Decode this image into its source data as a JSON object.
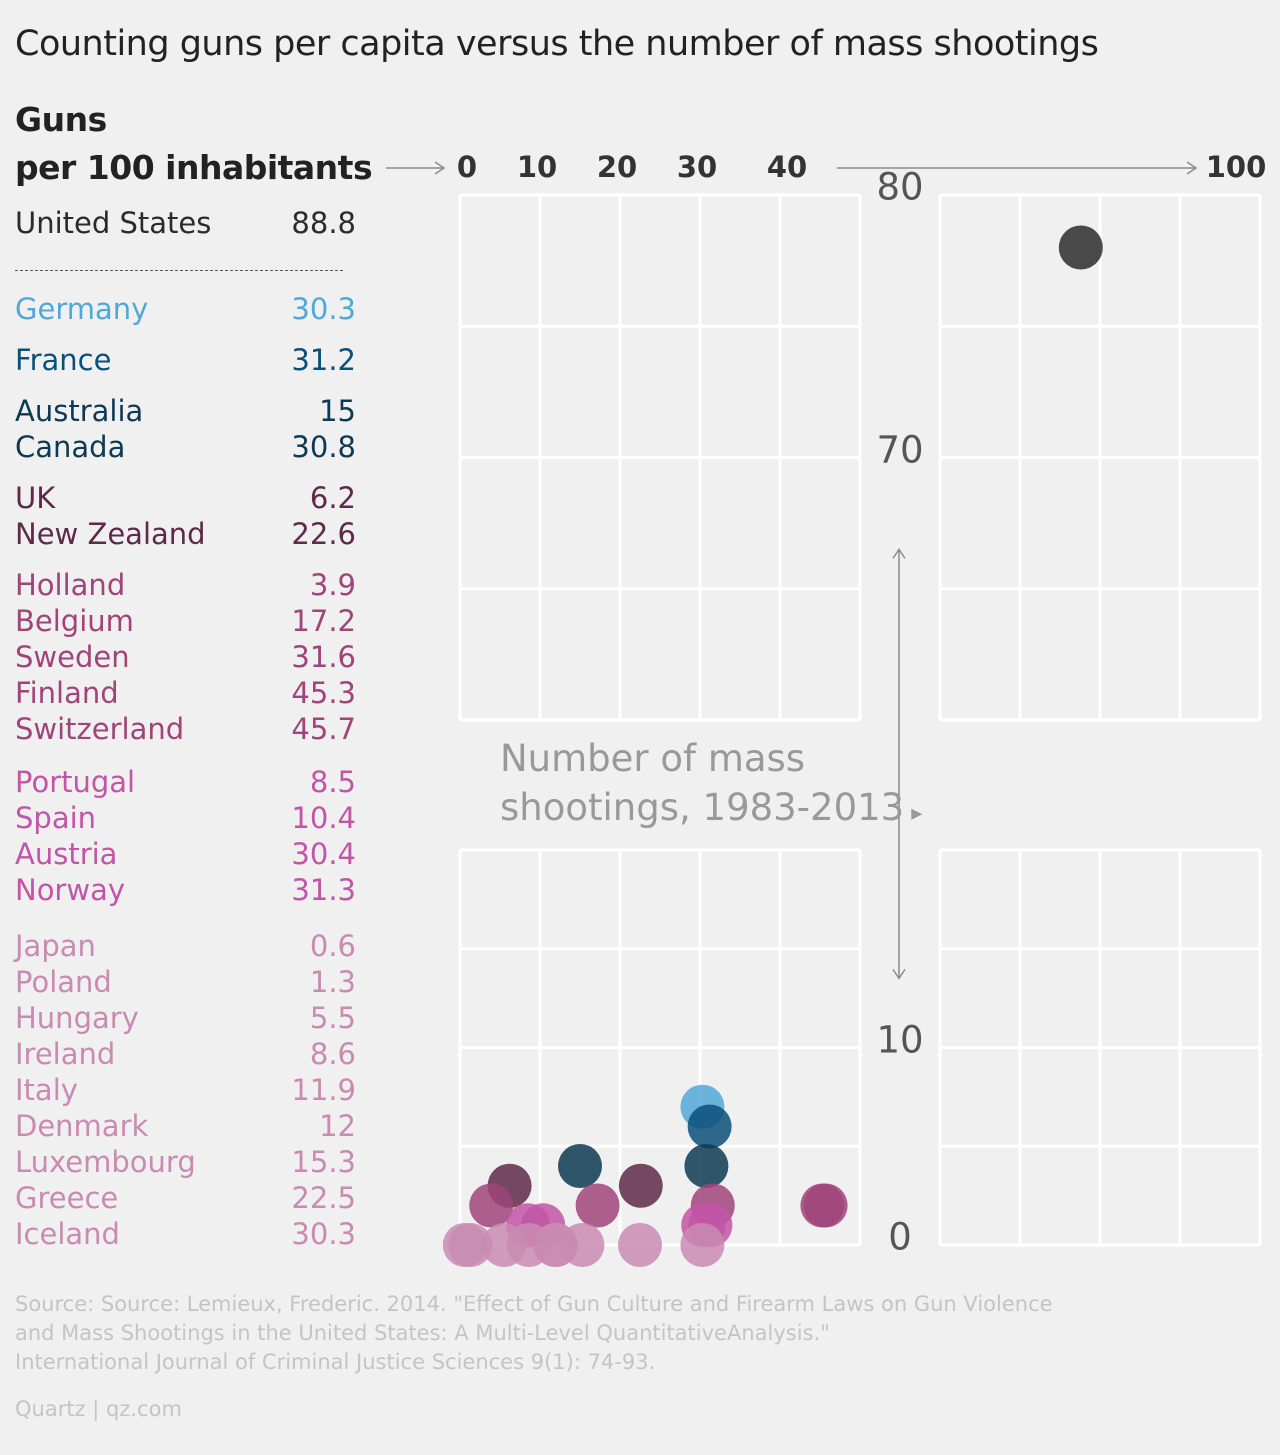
{
  "title": "Counting guns per capita versus the number of mass shootings",
  "guns_label_line1": "Guns",
  "guns_label_line2": "per 100 inhabitants",
  "shootings_label_line1": "Number of mass",
  "shootings_label_line2": "shootings, 1983-2013",
  "source_lines": [
    "Source: Source: Lemieux, Frederic. 2014. \"Effect of Gun Culture and Firearm Laws on Gun Violence",
    "and Mass Shootings in the United States: A Multi-Level QuantitativeAnalysis.\"",
    "International Journal of Criminal Justice Sciences 9(1): 74-93."
  ],
  "credit": "Quartz | qz.com",
  "colors": {
    "us": "#2b2b2b",
    "germany": "#51a8d8",
    "france": "#0b4f7a",
    "group_dark_blue": "#0d3a52",
    "group_plum": "#5e2a4a",
    "group_magenta": "#a0447a",
    "group_pink": "#c255a6",
    "group_light_pink": "#c98bb2",
    "grid": "#ffffff",
    "arrow": "#8a8a8a"
  },
  "chart_data": {
    "type": "scatter",
    "xlabel": "Guns per 100 inhabitants",
    "ylabel": "Number of mass shootings, 1983-2013",
    "x_ticks": [
      "0",
      "10",
      "20",
      "30",
      "40",
      "100"
    ],
    "y_ticks": [
      "0",
      "10",
      "70",
      "80"
    ],
    "x_break": [
      50,
      80
    ],
    "y_break": [
      20,
      60
    ],
    "xlim": [
      0,
      100
    ],
    "ylim": [
      0,
      80
    ],
    "grid": true,
    "legend": "left-table",
    "countries": [
      {
        "name": "United States",
        "guns": 88.8,
        "shootings": 78,
        "color": "#2b2b2b",
        "value_label": "88.8"
      },
      {
        "name": "Germany",
        "guns": 30.3,
        "shootings": 7,
        "color": "#51a8d8",
        "value_label": "30.3"
      },
      {
        "name": "France",
        "guns": 31.2,
        "shootings": 6,
        "color": "#0b4f7a",
        "value_label": "31.2"
      },
      {
        "name": "Australia",
        "guns": 15,
        "shootings": 4,
        "color": "#0d3a52",
        "value_label": "15"
      },
      {
        "name": "Canada",
        "guns": 30.8,
        "shootings": 4,
        "color": "#0d3a52",
        "value_label": "30.8"
      },
      {
        "name": "UK",
        "guns": 6.2,
        "shootings": 3,
        "color": "#5e2a4a",
        "value_label": "6.2"
      },
      {
        "name": "New Zealand",
        "guns": 22.6,
        "shootings": 3,
        "color": "#5e2a4a",
        "value_label": "22.6"
      },
      {
        "name": "Holland",
        "guns": 3.9,
        "shootings": 2,
        "color": "#a0447a",
        "value_label": "3.9"
      },
      {
        "name": "Belgium",
        "guns": 17.2,
        "shootings": 2,
        "color": "#a0447a",
        "value_label": "17.2"
      },
      {
        "name": "Sweden",
        "guns": 31.6,
        "shootings": 2,
        "color": "#a0447a",
        "value_label": "31.6"
      },
      {
        "name": "Finland",
        "guns": 45.3,
        "shootings": 2,
        "color": "#a0447a",
        "value_label": "45.3"
      },
      {
        "name": "Switzerland",
        "guns": 45.7,
        "shootings": 2,
        "color": "#a0447a",
        "value_label": "45.7"
      },
      {
        "name": "Portugal",
        "guns": 8.5,
        "shootings": 1,
        "color": "#c255a6",
        "value_label": "8.5"
      },
      {
        "name": "Spain",
        "guns": 10.4,
        "shootings": 1,
        "color": "#c255a6",
        "value_label": "10.4"
      },
      {
        "name": "Austria",
        "guns": 30.4,
        "shootings": 1,
        "color": "#c255a6",
        "value_label": "30.4"
      },
      {
        "name": "Norway",
        "guns": 31.3,
        "shootings": 1,
        "color": "#c255a6",
        "value_label": "31.3"
      },
      {
        "name": "Japan",
        "guns": 0.6,
        "shootings": 0,
        "color": "#c98bb2",
        "value_label": "0.6"
      },
      {
        "name": "Poland",
        "guns": 1.3,
        "shootings": 0,
        "color": "#c98bb2",
        "value_label": "1.3"
      },
      {
        "name": "Hungary",
        "guns": 5.5,
        "shootings": 0,
        "color": "#c98bb2",
        "value_label": "5.5"
      },
      {
        "name": "Ireland",
        "guns": 8.6,
        "shootings": 0,
        "color": "#c98bb2",
        "value_label": "8.6"
      },
      {
        "name": "Italy",
        "guns": 11.9,
        "shootings": 0,
        "color": "#c98bb2",
        "value_label": "11.9"
      },
      {
        "name": "Denmark",
        "guns": 12,
        "shootings": 0,
        "color": "#c98bb2",
        "value_label": "12"
      },
      {
        "name": "Luxembourg",
        "guns": 15.3,
        "shootings": 0,
        "color": "#c98bb2",
        "value_label": "15.3"
      },
      {
        "name": "Greece",
        "guns": 22.5,
        "shootings": 0,
        "color": "#c98bb2",
        "value_label": "22.5"
      },
      {
        "name": "Iceland",
        "guns": 30.3,
        "shootings": 0,
        "color": "#c98bb2",
        "value_label": "30.3"
      }
    ]
  }
}
